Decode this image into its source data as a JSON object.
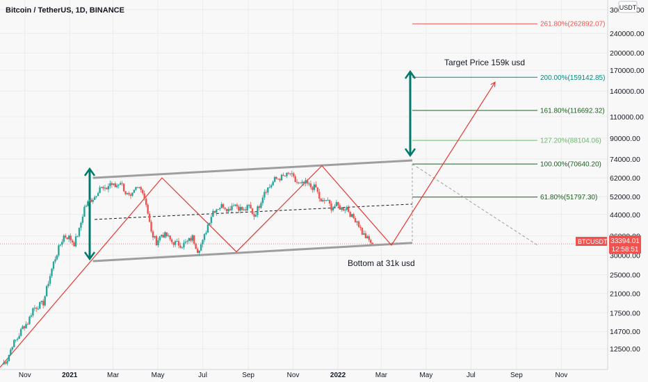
{
  "header": {
    "symbol_title": "Bitcoin / TetherUS, 1D, BINANCE"
  },
  "currency": "USDT",
  "price_tag": {
    "symbol": "BTCUSDT",
    "price": "33394.01",
    "countdown": "12:58:51",
    "color": "#ef5350"
  },
  "annotations": {
    "target": "Target Price 159k usd",
    "bottom": "Bottom at 31k usd"
  },
  "colors": {
    "candle_up": "#26a69a",
    "candle_down": "#ef5350",
    "zigzag": "#e53935",
    "channel": "#9e9e9e",
    "arrow": "#00796b",
    "fib": "#1b5e20"
  },
  "chart_data": {
    "type": "line",
    "scale": "log",
    "grid": true,
    "x_ticks": [
      "Nov",
      "2021",
      "Mar",
      "May",
      "Jul",
      "Sep",
      "Nov",
      "2022",
      "Mar",
      "May",
      "Jul",
      "Sep",
      "Nov"
    ],
    "y_ticks": [
      "300000.00",
      "240000.00",
      "200000.00",
      "170000.00",
      "140000.00",
      "110000.00",
      "90000.00",
      "74000.00",
      "62000.00",
      "52000.00",
      "44000.00",
      "36000.00",
      "30000.00",
      "25000.00",
      "21000.00",
      "17500.00",
      "14700.00",
      "12500.00"
    ],
    "ylim": [
      10700,
      320000
    ],
    "fib_levels": [
      {
        "label": "261.80%(262892.07)",
        "value": 262892.07,
        "color": "#ef5350"
      },
      {
        "label": "200.00%(159142.85)",
        "value": 159142.85,
        "color": "#00897b"
      },
      {
        "label": "161.80%(116692.32)",
        "value": 116692.32,
        "color": "#1b5e20"
      },
      {
        "label": "127.20%(88104.06)",
        "value": 88104.06,
        "color": "#66bb6a"
      },
      {
        "label": "100.00%(70640.20)",
        "value": 70640.2,
        "color": "#1b5e20"
      },
      {
        "label": "61.80%(51797.30)",
        "value": 51797.3,
        "color": "#1b5e20"
      }
    ],
    "series": [
      {
        "name": "BTCUSDT close",
        "x_start": "2020-10-01",
        "step_days": 7,
        "values": [
          10800,
          11300,
          13000,
          13800,
          15300,
          16000,
          18200,
          18700,
          19200,
          23400,
          28000,
          32000,
          36000,
          35500,
          33500,
          38000,
          47000,
          50000,
          52000,
          57000,
          55000,
          59000,
          57000,
          60000,
          54000,
          51000,
          56000,
          57000,
          49000,
          37000,
          34000,
          36500,
          36000,
          34000,
          33500,
          33000,
          34000,
          35500,
          31500,
          34000,
          40000,
          45500,
          47000,
          48000,
          46000,
          49000,
          47000,
          45500,
          47500,
          43500,
          48000,
          55000,
          57000,
          61000,
          62000,
          63000,
          64500,
          60000,
          58000,
          59000,
          57000,
          56500,
          49000,
          50500,
          47000,
          48000,
          46500,
          47000,
          43000,
          41500,
          37000,
          35000,
          33394
        ]
      }
    ],
    "channel": {
      "upper": [
        [
          0.144,
          62000
        ],
        [
          0.638,
          73000
        ]
      ],
      "lower": [
        [
          0.144,
          28400
        ],
        [
          0.638,
          33700
        ]
      ],
      "mid": [
        [
          0.144,
          42000
        ],
        [
          0.638,
          48500
        ]
      ]
    }
  }
}
